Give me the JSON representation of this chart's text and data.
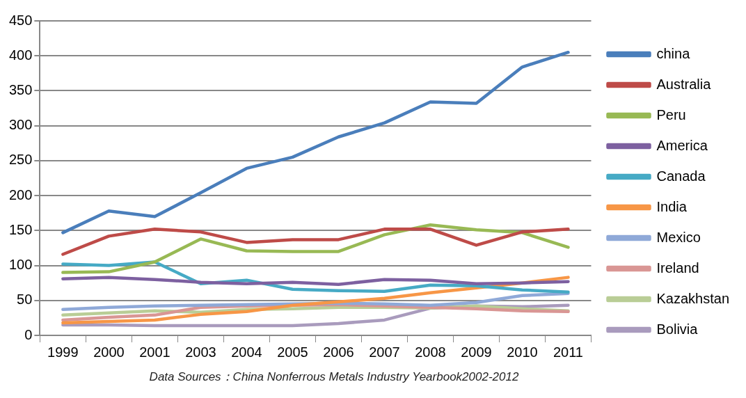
{
  "chart_data": {
    "type": "line",
    "categories": [
      "1999",
      "2000",
      "2001",
      "2003",
      "2004",
      "2005",
      "2006",
      "2007",
      "2008",
      "2009",
      "2010",
      "2011"
    ],
    "ylim": [
      0,
      450
    ],
    "yticks": [
      0,
      50,
      100,
      150,
      200,
      250,
      300,
      350,
      400,
      450
    ],
    "grid": "y",
    "legend": "right",
    "marker": "none",
    "line_style": "solid",
    "annotations": [
      "Data Sources：China Nonferrous Metals Industry Yearbook2002-2012"
    ],
    "series": [
      {
        "name": "china",
        "color": "#4a7ebb",
        "values": [
          147,
          178,
          170,
          204,
          239,
          255,
          284,
          304,
          334,
          332,
          384,
          405
        ]
      },
      {
        "name": "Australia",
        "color": "#be4b48",
        "values": [
          116,
          142,
          152,
          148,
          133,
          137,
          137,
          152,
          152,
          129,
          148,
          152
        ]
      },
      {
        "name": "Peru",
        "color": "#98b954",
        "values": [
          90,
          91,
          105,
          138,
          121,
          120,
          120,
          144,
          158,
          151,
          147,
          126
        ]
      },
      {
        "name": "America",
        "color": "#7d60a0",
        "values": [
          81,
          83,
          80,
          76,
          74,
          76,
          73,
          80,
          79,
          74,
          75,
          77
        ]
      },
      {
        "name": "Canada",
        "color": "#46aac5",
        "values": [
          102,
          100,
          105,
          74,
          79,
          66,
          64,
          63,
          72,
          71,
          65,
          62
        ]
      },
      {
        "name": "India",
        "color": "#f79646",
        "values": [
          18,
          20,
          22,
          30,
          34,
          43,
          48,
          53,
          61,
          68,
          75,
          83
        ]
      },
      {
        "name": "Mexico",
        "color": "#8fa9d8",
        "values": [
          37,
          40,
          42,
          43,
          44,
          45,
          46,
          45,
          43,
          47,
          57,
          60
        ]
      },
      {
        "name": "Ireland",
        "color": "#d99694",
        "values": [
          22,
          26,
          29,
          40,
          42,
          43,
          44,
          42,
          40,
          38,
          35,
          34
        ]
      },
      {
        "name": "Kazakhstan",
        "color": "#b9cd96",
        "values": [
          29,
          32,
          35,
          33,
          37,
          38,
          40,
          40,
          39,
          42,
          38,
          35
        ]
      },
      {
        "name": "Bolivia",
        "color": "#a99bbd",
        "values": [
          15,
          15,
          14,
          14,
          14,
          14,
          17,
          22,
          39,
          42,
          41,
          43
        ]
      }
    ]
  }
}
